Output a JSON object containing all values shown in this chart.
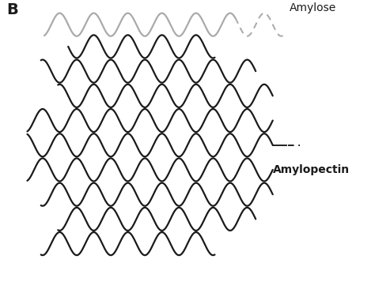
{
  "title": "B",
  "amylose_label": "Amylose",
  "amylopectin_label": "Amylopectin",
  "bg_color": "#ffffff",
  "dark_color": "#1a1a1a",
  "gray_color": "#aaaaaa",
  "title_fontsize": 14,
  "label_fontsize": 10,
  "fig_width": 4.74,
  "fig_height": 3.71,
  "dpi": 100,
  "sine_amplitude": 0.42,
  "sine_period": 1.0,
  "lw": 1.6
}
